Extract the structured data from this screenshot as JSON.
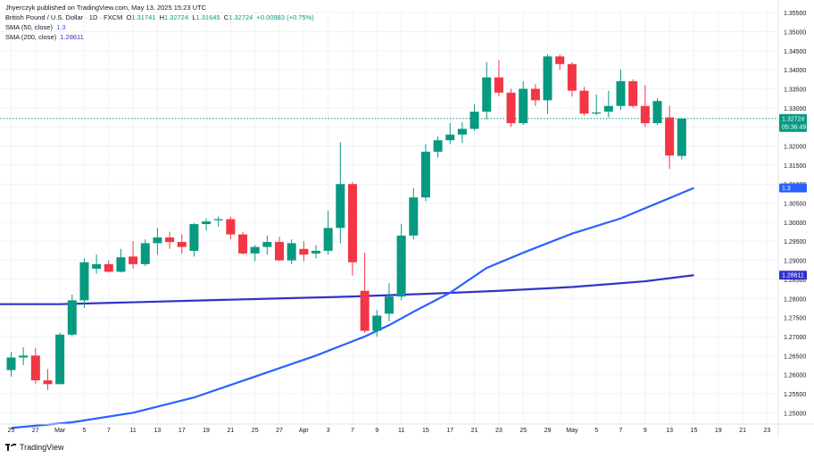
{
  "header": {
    "line1": "Jhyerczyk published on TradingView.com, May 13, 2025 15:23 UTC",
    "symbol": "British Pound / U.S. Dollar · 1D · FXCM",
    "ohlc": {
      "o_label": "O",
      "o": "1.31741",
      "h_label": "H",
      "h": "1.32724",
      "l_label": "L",
      "l": "1.31645",
      "c_label": "C",
      "c": "1.32724",
      "change": "+0.00983 (+0.75%)"
    },
    "sma50_label": "SMA (50, close)",
    "sma50_value": "1.3",
    "sma200_label": "SMA (200, close)",
    "sma200_value": "1.28611"
  },
  "price_badge": {
    "price": "1.32724",
    "countdown": "05:36:49"
  },
  "sma50_badge": "1.3",
  "sma200_badge": "1.28611",
  "footer_brand": "TradingView",
  "colors": {
    "up": "#089981",
    "down": "#f23645",
    "sma50": "#2962ff",
    "sma200": "#3232c8",
    "last_price_line": "#089981"
  },
  "chart_data": {
    "type": "candlestick",
    "ylim": [
      1.2475,
      1.3555
    ],
    "y_ticks": [
      "1.25000",
      "1.25500",
      "1.26000",
      "1.26500",
      "1.27000",
      "1.27500",
      "1.28000",
      "1.28500",
      "1.29000",
      "1.29500",
      "1.30000",
      "1.30500",
      "1.31000",
      "1.31500",
      "1.32000",
      "1.32500",
      "1.33000",
      "1.33500",
      "1.34000",
      "1.34500",
      "1.35000",
      "1.35500"
    ],
    "x_labels": [
      "25",
      "27",
      "Mar",
      "5",
      "7",
      "11",
      "13",
      "17",
      "19",
      "21",
      "25",
      "27",
      "Apr",
      "3",
      "7",
      "9",
      "11",
      "15",
      "17",
      "21",
      "23",
      "25",
      "29",
      "May",
      "5",
      "7",
      "9",
      "13",
      "15",
      "19",
      "21",
      "23"
    ],
    "candles": [
      {
        "o": 1.2612,
        "h": 1.266,
        "l": 1.2595,
        "c": 1.2645
      },
      {
        "o": 1.2645,
        "h": 1.2672,
        "l": 1.2625,
        "c": 1.265
      },
      {
        "o": 1.265,
        "h": 1.267,
        "l": 1.2575,
        "c": 1.2585
      },
      {
        "o": 1.2585,
        "h": 1.2615,
        "l": 1.256,
        "c": 1.2575
      },
      {
        "o": 1.2575,
        "h": 1.271,
        "l": 1.2575,
        "c": 1.2705
      },
      {
        "o": 1.2705,
        "h": 1.281,
        "l": 1.27,
        "c": 1.2795
      },
      {
        "o": 1.2795,
        "h": 1.2905,
        "l": 1.2775,
        "c": 1.2895
      },
      {
        "o": 1.2878,
        "h": 1.2915,
        "l": 1.2865,
        "c": 1.289
      },
      {
        "o": 1.289,
        "h": 1.29,
        "l": 1.2868,
        "c": 1.287
      },
      {
        "o": 1.287,
        "h": 1.293,
        "l": 1.2868,
        "c": 1.2908
      },
      {
        "o": 1.291,
        "h": 1.295,
        "l": 1.2878,
        "c": 1.289
      },
      {
        "o": 1.289,
        "h": 1.2955,
        "l": 1.2885,
        "c": 1.2945
      },
      {
        "o": 1.2945,
        "h": 1.2985,
        "l": 1.2915,
        "c": 1.296
      },
      {
        "o": 1.296,
        "h": 1.2975,
        "l": 1.293,
        "c": 1.2948
      },
      {
        "o": 1.2948,
        "h": 1.2968,
        "l": 1.2918,
        "c": 1.2935
      },
      {
        "o": 1.2925,
        "h": 1.2998,
        "l": 1.291,
        "c": 1.2995
      },
      {
        "o": 1.2995,
        "h": 1.301,
        "l": 1.2978,
        "c": 1.3002
      },
      {
        "o": 1.3005,
        "h": 1.3015,
        "l": 1.2988,
        "c": 1.3008
      },
      {
        "o": 1.3008,
        "h": 1.3015,
        "l": 1.2955,
        "c": 1.2968
      },
      {
        "o": 1.2968,
        "h": 1.2975,
        "l": 1.2915,
        "c": 1.2918
      },
      {
        "o": 1.2918,
        "h": 1.294,
        "l": 1.2898,
        "c": 1.2935
      },
      {
        "o": 1.2935,
        "h": 1.2965,
        "l": 1.2915,
        "c": 1.2948
      },
      {
        "o": 1.2948,
        "h": 1.2962,
        "l": 1.2898,
        "c": 1.29
      },
      {
        "o": 1.29,
        "h": 1.2955,
        "l": 1.289,
        "c": 1.2945
      },
      {
        "o": 1.293,
        "h": 1.295,
        "l": 1.2898,
        "c": 1.2915
      },
      {
        "o": 1.2918,
        "h": 1.294,
        "l": 1.2905,
        "c": 1.2925
      },
      {
        "o": 1.2925,
        "h": 1.303,
        "l": 1.2915,
        "c": 1.2985
      },
      {
        "o": 1.2985,
        "h": 1.321,
        "l": 1.2945,
        "c": 1.31
      },
      {
        "o": 1.31,
        "h": 1.3105,
        "l": 1.286,
        "c": 1.2895
      },
      {
        "o": 1.282,
        "h": 1.292,
        "l": 1.271,
        "c": 1.2715
      },
      {
        "o": 1.2715,
        "h": 1.277,
        "l": 1.27,
        "c": 1.2755
      },
      {
        "o": 1.276,
        "h": 1.284,
        "l": 1.274,
        "c": 1.2805
      },
      {
        "o": 1.2805,
        "h": 1.2995,
        "l": 1.2795,
        "c": 1.2965
      },
      {
        "o": 1.2965,
        "h": 1.309,
        "l": 1.2955,
        "c": 1.3065
      },
      {
        "o": 1.3065,
        "h": 1.3205,
        "l": 1.3055,
        "c": 1.3185
      },
      {
        "o": 1.3185,
        "h": 1.3225,
        "l": 1.317,
        "c": 1.3215
      },
      {
        "o": 1.3215,
        "h": 1.326,
        "l": 1.3205,
        "c": 1.323
      },
      {
        "o": 1.323,
        "h": 1.3262,
        "l": 1.3208,
        "c": 1.3245
      },
      {
        "o": 1.3245,
        "h": 1.331,
        "l": 1.324,
        "c": 1.329
      },
      {
        "o": 1.329,
        "h": 1.342,
        "l": 1.327,
        "c": 1.338
      },
      {
        "o": 1.338,
        "h": 1.3425,
        "l": 1.333,
        "c": 1.334
      },
      {
        "o": 1.334,
        "h": 1.335,
        "l": 1.325,
        "c": 1.326
      },
      {
        "o": 1.326,
        "h": 1.337,
        "l": 1.3255,
        "c": 1.335
      },
      {
        "o": 1.335,
        "h": 1.3362,
        "l": 1.3305,
        "c": 1.332
      },
      {
        "o": 1.332,
        "h": 1.344,
        "l": 1.3285,
        "c": 1.3435
      },
      {
        "o": 1.3435,
        "h": 1.344,
        "l": 1.34,
        "c": 1.3415
      },
      {
        "o": 1.3415,
        "h": 1.342,
        "l": 1.333,
        "c": 1.3345
      },
      {
        "o": 1.3345,
        "h": 1.3355,
        "l": 1.328,
        "c": 1.3285
      },
      {
        "o": 1.3285,
        "h": 1.3335,
        "l": 1.328,
        "c": 1.3288
      },
      {
        "o": 1.329,
        "h": 1.3345,
        "l": 1.3275,
        "c": 1.3305
      },
      {
        "o": 1.3305,
        "h": 1.34,
        "l": 1.3295,
        "c": 1.337
      },
      {
        "o": 1.337,
        "h": 1.3375,
        "l": 1.33,
        "c": 1.3305
      },
      {
        "o": 1.3305,
        "h": 1.336,
        "l": 1.325,
        "c": 1.326
      },
      {
        "o": 1.326,
        "h": 1.3325,
        "l": 1.3255,
        "c": 1.3318
      },
      {
        "o": 1.3275,
        "h": 1.3305,
        "l": 1.314,
        "c": 1.3175
      },
      {
        "o": 1.3174,
        "h": 1.3272,
        "l": 1.3165,
        "c": 1.3272
      }
    ],
    "sma50": [
      [
        0,
        1.246
      ],
      [
        5,
        1.2475
      ],
      [
        10,
        1.25
      ],
      [
        15,
        1.254
      ],
      [
        20,
        1.2595
      ],
      [
        25,
        1.265
      ],
      [
        29,
        1.27
      ],
      [
        31,
        1.273
      ],
      [
        33,
        1.2765
      ],
      [
        36,
        1.2815
      ],
      [
        39,
        1.288
      ],
      [
        42,
        1.292
      ],
      [
        46,
        1.297
      ],
      [
        50,
        1.301
      ],
      [
        53,
        1.305
      ],
      [
        56,
        1.309
      ]
    ],
    "sma200": [
      [
        0,
        1.2785
      ],
      [
        4,
        1.2785
      ],
      [
        10,
        1.279
      ],
      [
        16,
        1.2795
      ],
      [
        22,
        1.28
      ],
      [
        28,
        1.2805
      ],
      [
        34,
        1.2812
      ],
      [
        40,
        1.282
      ],
      [
        46,
        1.283
      ],
      [
        52,
        1.2845
      ],
      [
        56,
        1.2861
      ]
    ]
  }
}
